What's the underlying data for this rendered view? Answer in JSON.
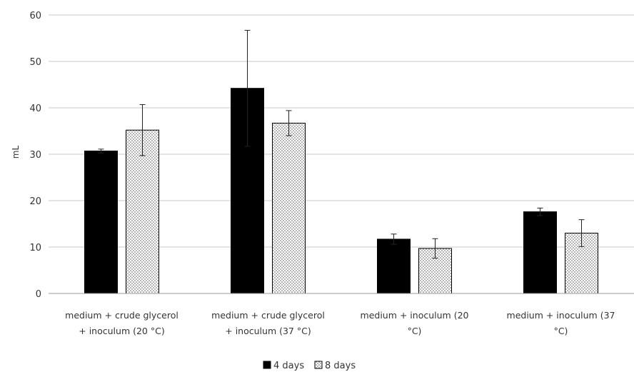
{
  "chart_data": {
    "type": "bar",
    "title": "",
    "xlabel": "",
    "ylabel": "mL",
    "ylim": [
      0,
      60
    ],
    "yticks": [
      "0",
      "10",
      "20",
      "30",
      "40",
      "50",
      "60"
    ],
    "grid": true,
    "legend_position": "bottom",
    "categories": [
      [
        "medium + crude glycerol",
        "+ inoculum (20 °C)"
      ],
      [
        "medium + crude glycerol",
        "+ inoculum (37 °C)"
      ],
      [
        "medium + inoculum (20",
        "°C)"
      ],
      [
        "medium + inoculum (37",
        "°C)"
      ]
    ],
    "series": [
      {
        "name": "4 days",
        "values": [
          30.7,
          44.2,
          11.7,
          17.6
        ],
        "errors": [
          0.4,
          12.5,
          1.1,
          0.8
        ],
        "color": "#000000",
        "pattern": "solid"
      },
      {
        "name": "8 days",
        "values": [
          35.2,
          36.7,
          9.7,
          13.0
        ],
        "errors": [
          5.5,
          2.7,
          2.1,
          2.9
        ],
        "color": "#ffffff",
        "pattern": "dotted"
      }
    ]
  }
}
